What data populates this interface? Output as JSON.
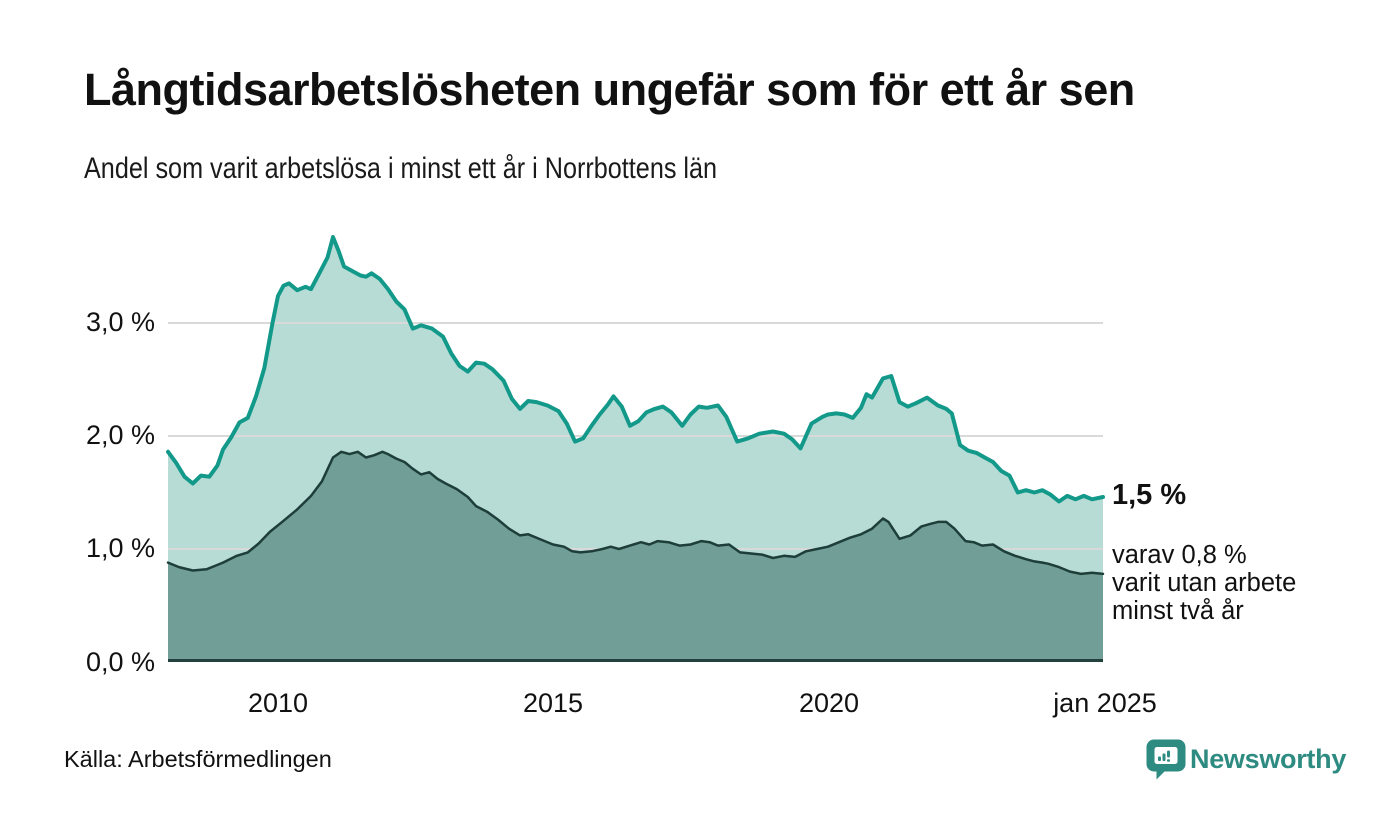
{
  "header": {
    "title": "Långtidsarbetslösheten ungefär som för ett år sen",
    "subtitle": "Andel som varit arbetslösa i minst ett år i Norrbottens län"
  },
  "axes": {
    "y_labels": [
      "0,0 %",
      "1,0 %",
      "2,0 %",
      "3,0 %"
    ],
    "x_labels": [
      "2010",
      "2015",
      "2020",
      "jan 2025"
    ]
  },
  "annotation": {
    "value": "1,5 %",
    "lines": [
      "varav 0,8 %",
      "varit utan arbete",
      "minst två år"
    ]
  },
  "footer": {
    "source": "Källa: Arbetsförmedlingen",
    "logo_text": "Newsworthy"
  },
  "colors": {
    "line_1yr": "#13998a",
    "fill_1yr": "#b7dcd6",
    "line_2yr": "#1e3e3a",
    "fill_2yr": "#719e97",
    "gridline": "#d9d9d9",
    "baseline": "#22403c",
    "logo_teal": "#2e8b81",
    "text": "#111111"
  },
  "chart_data": {
    "type": "area",
    "title": "Långtidsarbetslösheten ungefär som för ett år sen",
    "subtitle": "Andel som varit arbetslösa i minst ett år i Norrbottens län",
    "unit": "%",
    "x_range": [
      2008,
      2025
    ],
    "ylim": [
      0,
      3.8
    ],
    "grid": "horizontal",
    "legend_position": "none",
    "y_tick_values": [
      0,
      1,
      2,
      3
    ],
    "y_tick_labels": [
      "0,0 %",
      "1,0 %",
      "2,0 %",
      "3,0 %"
    ],
    "x_tick_values": [
      2010,
      2015,
      2020,
      2025
    ],
    "x_tick_labels": [
      "2010",
      "2015",
      "2020",
      "jan 2025"
    ],
    "series": [
      {
        "name": "Arbetslösa minst ett år",
        "end_label": "1,5 %",
        "end_value": 1.5,
        "points": [
          [
            2008.0,
            1.86
          ],
          [
            2008.15,
            1.76
          ],
          [
            2008.3,
            1.64
          ],
          [
            2008.45,
            1.58
          ],
          [
            2008.6,
            1.65
          ],
          [
            2008.75,
            1.64
          ],
          [
            2008.9,
            1.74
          ],
          [
            2009.0,
            1.88
          ],
          [
            2009.15,
            1.99
          ],
          [
            2009.3,
            2.12
          ],
          [
            2009.45,
            2.16
          ],
          [
            2009.6,
            2.35
          ],
          [
            2009.75,
            2.6
          ],
          [
            2009.9,
            3.0
          ],
          [
            2010.0,
            3.24
          ],
          [
            2010.1,
            3.33
          ],
          [
            2010.2,
            3.35
          ],
          [
            2010.35,
            3.29
          ],
          [
            2010.5,
            3.32
          ],
          [
            2010.6,
            3.3
          ],
          [
            2010.75,
            3.44
          ],
          [
            2010.9,
            3.58
          ],
          [
            2011.0,
            3.76
          ],
          [
            2011.1,
            3.64
          ],
          [
            2011.2,
            3.5
          ],
          [
            2011.35,
            3.46
          ],
          [
            2011.5,
            3.42
          ],
          [
            2011.6,
            3.41
          ],
          [
            2011.7,
            3.44
          ],
          [
            2011.85,
            3.39
          ],
          [
            2012.0,
            3.3
          ],
          [
            2012.15,
            3.19
          ],
          [
            2012.3,
            3.12
          ],
          [
            2012.45,
            2.95
          ],
          [
            2012.6,
            2.98
          ],
          [
            2012.8,
            2.95
          ],
          [
            2013.0,
            2.88
          ],
          [
            2013.15,
            2.73
          ],
          [
            2013.3,
            2.62
          ],
          [
            2013.45,
            2.57
          ],
          [
            2013.6,
            2.65
          ],
          [
            2013.75,
            2.64
          ],
          [
            2013.9,
            2.59
          ],
          [
            2014.1,
            2.49
          ],
          [
            2014.25,
            2.33
          ],
          [
            2014.4,
            2.24
          ],
          [
            2014.55,
            2.31
          ],
          [
            2014.7,
            2.3
          ],
          [
            2014.9,
            2.27
          ],
          [
            2015.1,
            2.22
          ],
          [
            2015.25,
            2.11
          ],
          [
            2015.4,
            1.95
          ],
          [
            2015.55,
            1.98
          ],
          [
            2015.7,
            2.09
          ],
          [
            2015.85,
            2.19
          ],
          [
            2016.0,
            2.28
          ],
          [
            2016.1,
            2.35
          ],
          [
            2016.25,
            2.26
          ],
          [
            2016.4,
            2.09
          ],
          [
            2016.55,
            2.13
          ],
          [
            2016.7,
            2.21
          ],
          [
            2016.85,
            2.24
          ],
          [
            2017.0,
            2.26
          ],
          [
            2017.15,
            2.21
          ],
          [
            2017.35,
            2.09
          ],
          [
            2017.5,
            2.19
          ],
          [
            2017.65,
            2.26
          ],
          [
            2017.8,
            2.25
          ],
          [
            2018.0,
            2.27
          ],
          [
            2018.15,
            2.17
          ],
          [
            2018.35,
            1.95
          ],
          [
            2018.55,
            1.98
          ],
          [
            2018.75,
            2.02
          ],
          [
            2019.0,
            2.04
          ],
          [
            2019.2,
            2.02
          ],
          [
            2019.35,
            1.97
          ],
          [
            2019.5,
            1.89
          ],
          [
            2019.7,
            2.11
          ],
          [
            2019.9,
            2.17
          ],
          [
            2020.0,
            2.19
          ],
          [
            2020.15,
            2.2
          ],
          [
            2020.3,
            2.19
          ],
          [
            2020.45,
            2.16
          ],
          [
            2020.6,
            2.25
          ],
          [
            2020.7,
            2.37
          ],
          [
            2020.8,
            2.34
          ],
          [
            2021.0,
            2.51
          ],
          [
            2021.15,
            2.53
          ],
          [
            2021.3,
            2.3
          ],
          [
            2021.45,
            2.26
          ],
          [
            2021.6,
            2.29
          ],
          [
            2021.8,
            2.34
          ],
          [
            2022.0,
            2.27
          ],
          [
            2022.15,
            2.24
          ],
          [
            2022.25,
            2.2
          ],
          [
            2022.4,
            1.92
          ],
          [
            2022.55,
            1.87
          ],
          [
            2022.7,
            1.85
          ],
          [
            2022.85,
            1.81
          ],
          [
            2023.0,
            1.77
          ],
          [
            2023.15,
            1.69
          ],
          [
            2023.3,
            1.65
          ],
          [
            2023.45,
            1.5
          ],
          [
            2023.6,
            1.52
          ],
          [
            2023.75,
            1.5
          ],
          [
            2023.9,
            1.52
          ],
          [
            2024.05,
            1.48
          ],
          [
            2024.2,
            1.42
          ],
          [
            2024.35,
            1.47
          ],
          [
            2024.5,
            1.44
          ],
          [
            2024.65,
            1.47
          ],
          [
            2024.8,
            1.44
          ],
          [
            2025.0,
            1.46
          ]
        ]
      },
      {
        "name": "Varav utan arbete minst två år",
        "end_label": "varav 0,8 %",
        "end_value": 0.8,
        "points": [
          [
            2008.0,
            0.88
          ],
          [
            2008.2,
            0.84
          ],
          [
            2008.45,
            0.81
          ],
          [
            2008.7,
            0.82
          ],
          [
            2008.85,
            0.85
          ],
          [
            2009.0,
            0.88
          ],
          [
            2009.25,
            0.94
          ],
          [
            2009.45,
            0.97
          ],
          [
            2009.65,
            1.05
          ],
          [
            2009.85,
            1.15
          ],
          [
            2010.1,
            1.25
          ],
          [
            2010.35,
            1.35
          ],
          [
            2010.6,
            1.47
          ],
          [
            2010.8,
            1.6
          ],
          [
            2011.0,
            1.81
          ],
          [
            2011.15,
            1.86
          ],
          [
            2011.3,
            1.84
          ],
          [
            2011.45,
            1.86
          ],
          [
            2011.6,
            1.81
          ],
          [
            2011.75,
            1.83
          ],
          [
            2011.9,
            1.86
          ],
          [
            2012.0,
            1.84
          ],
          [
            2012.15,
            1.8
          ],
          [
            2012.3,
            1.77
          ],
          [
            2012.45,
            1.71
          ],
          [
            2012.6,
            1.66
          ],
          [
            2012.75,
            1.68
          ],
          [
            2012.9,
            1.62
          ],
          [
            2013.05,
            1.58
          ],
          [
            2013.25,
            1.53
          ],
          [
            2013.45,
            1.46
          ],
          [
            2013.6,
            1.38
          ],
          [
            2013.8,
            1.33
          ],
          [
            2014.0,
            1.26
          ],
          [
            2014.2,
            1.18
          ],
          [
            2014.4,
            1.12
          ],
          [
            2014.55,
            1.13
          ],
          [
            2014.8,
            1.08
          ],
          [
            2015.0,
            1.04
          ],
          [
            2015.2,
            1.02
          ],
          [
            2015.35,
            0.98
          ],
          [
            2015.5,
            0.97
          ],
          [
            2015.7,
            0.98
          ],
          [
            2015.9,
            1.0
          ],
          [
            2016.05,
            1.02
          ],
          [
            2016.2,
            1.0
          ],
          [
            2016.4,
            1.03
          ],
          [
            2016.6,
            1.06
          ],
          [
            2016.75,
            1.04
          ],
          [
            2016.9,
            1.07
          ],
          [
            2017.1,
            1.06
          ],
          [
            2017.3,
            1.03
          ],
          [
            2017.5,
            1.04
          ],
          [
            2017.7,
            1.07
          ],
          [
            2017.85,
            1.06
          ],
          [
            2018.0,
            1.03
          ],
          [
            2018.2,
            1.04
          ],
          [
            2018.4,
            0.97
          ],
          [
            2018.6,
            0.96
          ],
          [
            2018.8,
            0.95
          ],
          [
            2019.0,
            0.92
          ],
          [
            2019.2,
            0.94
          ],
          [
            2019.4,
            0.93
          ],
          [
            2019.6,
            0.98
          ],
          [
            2019.8,
            1.0
          ],
          [
            2020.0,
            1.02
          ],
          [
            2020.2,
            1.06
          ],
          [
            2020.4,
            1.1
          ],
          [
            2020.6,
            1.13
          ],
          [
            2020.8,
            1.18
          ],
          [
            2021.0,
            1.27
          ],
          [
            2021.1,
            1.24
          ],
          [
            2021.3,
            1.09
          ],
          [
            2021.5,
            1.12
          ],
          [
            2021.7,
            1.2
          ],
          [
            2021.85,
            1.22
          ],
          [
            2022.0,
            1.24
          ],
          [
            2022.15,
            1.24
          ],
          [
            2022.3,
            1.18
          ],
          [
            2022.5,
            1.07
          ],
          [
            2022.65,
            1.06
          ],
          [
            2022.8,
            1.03
          ],
          [
            2023.0,
            1.04
          ],
          [
            2023.2,
            0.98
          ],
          [
            2023.4,
            0.94
          ],
          [
            2023.6,
            0.91
          ],
          [
            2023.75,
            0.89
          ],
          [
            2023.9,
            0.88
          ],
          [
            2024.0,
            0.87
          ],
          [
            2024.2,
            0.84
          ],
          [
            2024.4,
            0.8
          ],
          [
            2024.6,
            0.78
          ],
          [
            2024.8,
            0.79
          ],
          [
            2025.0,
            0.78
          ]
        ]
      }
    ]
  }
}
